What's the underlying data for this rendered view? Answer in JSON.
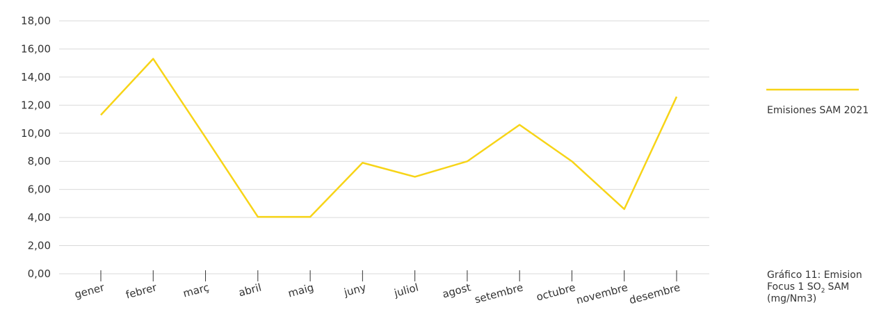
{
  "chart_data": {
    "type": "line",
    "categories": [
      "gener",
      "febrer",
      "març",
      "abril",
      "maig",
      "juny",
      "juliol",
      "agost",
      "setembre",
      "octubre",
      "novembre",
      "desembre"
    ],
    "series": [
      {
        "name": "Emisiones SAM 2021",
        "color": "#f7d417",
        "values": [
          11.3,
          15.3,
          9.7,
          4.05,
          4.05,
          7.9,
          6.9,
          8.0,
          10.6,
          8.0,
          4.6,
          12.6
        ]
      }
    ],
    "ylim": [
      0,
      18
    ],
    "yticks": [
      {
        "value": 0,
        "label": "0,00"
      },
      {
        "value": 2,
        "label": "2,00"
      },
      {
        "value": 4,
        "label": "4,00"
      },
      {
        "value": 6,
        "label": "6,00"
      },
      {
        "value": 8,
        "label": "8,00"
      },
      {
        "value": 10,
        "label": "10,00"
      },
      {
        "value": 12,
        "label": "12,00"
      },
      {
        "value": 14,
        "label": "14,00"
      },
      {
        "value": 16,
        "label": "16,00"
      },
      {
        "value": 18,
        "label": "18,00"
      }
    ],
    "grid": true,
    "legend": "right",
    "caption": {
      "line1": "Gráfico 11: Emision",
      "line2": "Focus 1 SO",
      "subscript": "2",
      "line2_end": "SAM",
      "line3": "(mg/Nm3)"
    }
  }
}
